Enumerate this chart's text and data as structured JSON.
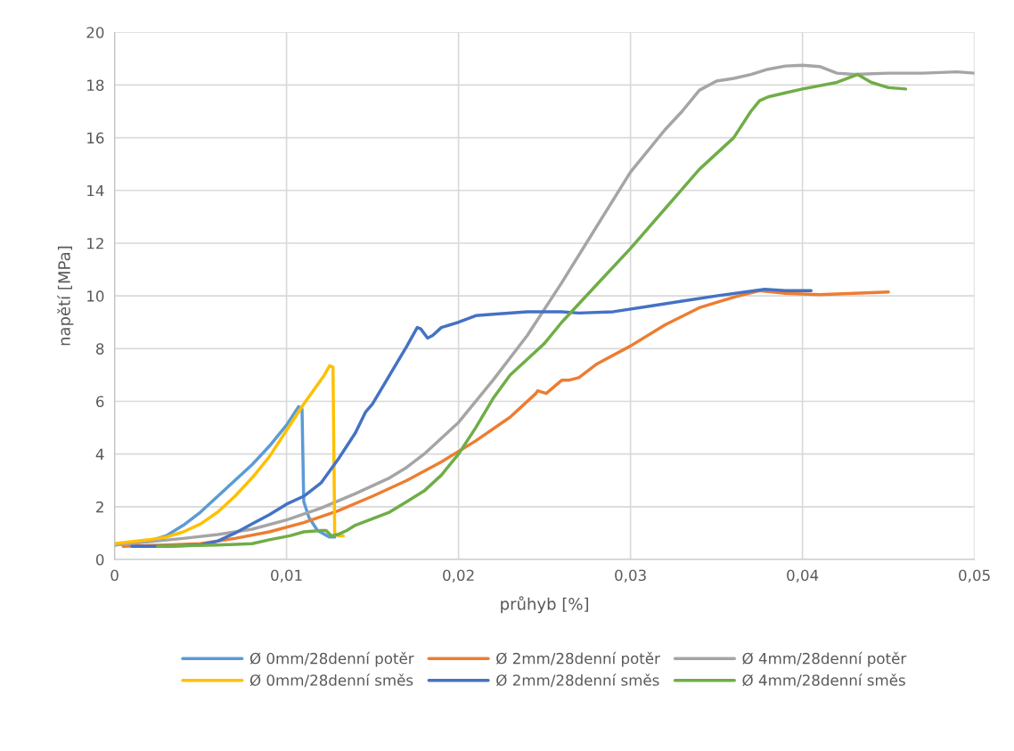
{
  "chart_data": {
    "type": "line",
    "xlabel": "průhyb [%]",
    "ylabel": "napětí [MPa]",
    "xlim": [
      0,
      0.05
    ],
    "xticks": [
      0,
      {
        "value": 0.01,
        "label": "0,01"
      },
      {
        "value": 0.02,
        "label": "0,02"
      },
      {
        "value": 0.03,
        "label": "0,03"
      },
      {
        "value": 0.04,
        "label": "0,04"
      },
      {
        "value": 0.05,
        "label": "0,05"
      }
    ],
    "ylim": [
      0,
      20
    ],
    "yticks": [
      0,
      2,
      4,
      6,
      8,
      10,
      12,
      14,
      16,
      18,
      20
    ],
    "grid": true,
    "legend": "bottom",
    "marker": "none",
    "line_style": "solid",
    "series": [
      {
        "name": "Ø 0mm/28denní potěr",
        "color": "#5b9bd5",
        "x": [
          0,
          0.002,
          0.003,
          0.004,
          0.005,
          0.006,
          0.007,
          0.008,
          0.009,
          0.01,
          0.0107,
          0.0109,
          0.011,
          0.0113,
          0.0118,
          0.0125,
          0.0128
        ],
        "values": [
          0.55,
          0.7,
          0.9,
          1.3,
          1.8,
          2.4,
          3.0,
          3.6,
          4.3,
          5.1,
          5.8,
          5.7,
          2.2,
          1.6,
          1.1,
          0.85,
          0.85
        ]
      },
      {
        "name": "Ø 2mm/28denní potěr",
        "color": "#ed7d31",
        "x": [
          0.0005,
          0.003,
          0.005,
          0.007,
          0.009,
          0.011,
          0.013,
          0.015,
          0.017,
          0.019,
          0.021,
          0.023,
          0.0245,
          0.0246,
          0.0251,
          0.026,
          0.0264,
          0.027,
          0.028,
          0.03,
          0.032,
          0.034,
          0.036,
          0.0375,
          0.039,
          0.041,
          0.043,
          0.045
        ],
        "values": [
          0.5,
          0.55,
          0.6,
          0.8,
          1.05,
          1.4,
          1.85,
          2.4,
          3.0,
          3.7,
          4.5,
          5.4,
          6.3,
          6.4,
          6.3,
          6.8,
          6.8,
          6.9,
          7.4,
          8.1,
          8.9,
          9.55,
          9.95,
          10.2,
          10.1,
          10.05,
          10.1,
          10.15
        ]
      },
      {
        "name": "Ø 4mm/28denní potěr",
        "color": "#a5a5a5",
        "x": [
          0,
          0.004,
          0.006,
          0.008,
          0.01,
          0.012,
          0.014,
          0.016,
          0.017,
          0.018,
          0.019,
          0.02,
          0.022,
          0.024,
          0.026,
          0.028,
          0.03,
          0.032,
          0.033,
          0.034,
          0.035,
          0.036,
          0.037,
          0.038,
          0.039,
          0.04,
          0.041,
          0.042,
          0.043,
          0.045,
          0.047,
          0.049,
          0.05
        ],
        "values": [
          0.55,
          0.8,
          0.95,
          1.15,
          1.5,
          1.95,
          2.5,
          3.1,
          3.5,
          4.0,
          4.6,
          5.2,
          6.8,
          8.5,
          10.5,
          12.6,
          14.7,
          16.3,
          17.0,
          17.8,
          18.15,
          18.25,
          18.4,
          18.6,
          18.72,
          18.75,
          18.7,
          18.45,
          18.4,
          18.45,
          18.45,
          18.5,
          18.45
        ]
      },
      {
        "name": "Ø 0mm/28denní směs",
        "color": "#ffc000",
        "x": [
          0,
          0.002,
          0.003,
          0.004,
          0.005,
          0.006,
          0.007,
          0.008,
          0.009,
          0.01,
          0.011,
          0.0122,
          0.0125,
          0.0127,
          0.0128,
          0.013,
          0.0133
        ],
        "values": [
          0.6,
          0.75,
          0.85,
          1.05,
          1.35,
          1.8,
          2.4,
          3.1,
          3.9,
          4.9,
          5.9,
          7.0,
          7.35,
          7.3,
          1.0,
          0.9,
          0.9
        ]
      },
      {
        "name": "Ø 2mm/28denní směs",
        "color": "#4472c4",
        "x": [
          0.001,
          0.003,
          0.005,
          0.006,
          0.007,
          0.008,
          0.009,
          0.01,
          0.011,
          0.012,
          0.013,
          0.014,
          0.0146,
          0.015,
          0.016,
          0.017,
          0.0176,
          0.0178,
          0.0182,
          0.0185,
          0.019,
          0.02,
          0.021,
          0.022,
          0.024,
          0.026,
          0.027,
          0.029,
          0.031,
          0.033,
          0.035,
          0.0378,
          0.039,
          0.0405
        ],
        "values": [
          0.5,
          0.5,
          0.55,
          0.7,
          1.0,
          1.35,
          1.7,
          2.1,
          2.4,
          2.9,
          3.8,
          4.8,
          5.6,
          5.9,
          7.0,
          8.1,
          8.8,
          8.75,
          8.4,
          8.5,
          8.8,
          9.0,
          9.25,
          9.3,
          9.4,
          9.4,
          9.35,
          9.4,
          9.6,
          9.8,
          10.0,
          10.25,
          10.2,
          10.2
        ]
      },
      {
        "name": "Ø 4mm/28denní směs",
        "color": "#70ad47",
        "x": [
          0.0025,
          0.006,
          0.008,
          0.009,
          0.0102,
          0.011,
          0.012,
          0.0123,
          0.0126,
          0.013,
          0.0135,
          0.014,
          0.016,
          0.017,
          0.018,
          0.019,
          0.02,
          0.021,
          0.022,
          0.023,
          0.024,
          0.025,
          0.026,
          0.028,
          0.03,
          0.032,
          0.034,
          0.036,
          0.037,
          0.0375,
          0.038,
          0.039,
          0.04,
          0.042,
          0.043,
          0.0432,
          0.044,
          0.045,
          0.046
        ],
        "values": [
          0.5,
          0.55,
          0.6,
          0.75,
          0.9,
          1.05,
          1.1,
          1.1,
          0.9,
          0.95,
          1.1,
          1.3,
          1.8,
          2.2,
          2.6,
          3.2,
          4.0,
          5.0,
          6.1,
          7.0,
          7.6,
          8.2,
          9.0,
          10.4,
          11.8,
          13.3,
          14.8,
          16.0,
          17.0,
          17.4,
          17.55,
          17.7,
          17.85,
          18.1,
          18.35,
          18.4,
          18.1,
          17.9,
          17.85
        ]
      }
    ]
  }
}
